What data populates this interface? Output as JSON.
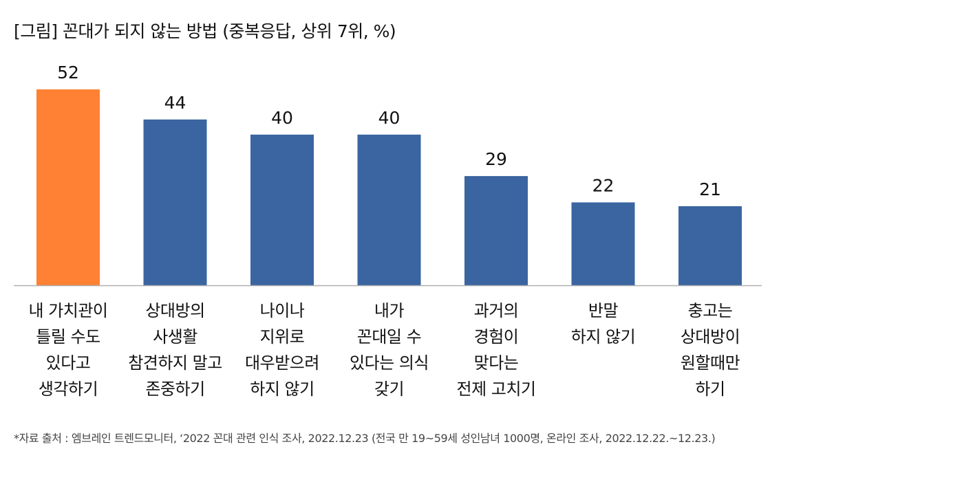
{
  "chart_data": {
    "type": "bar",
    "title": "[그림] 꼰대가 되지 않는 방법 (중복응답, 상위 7위, %)",
    "categories": [
      [
        "내 가치관이",
        "틀릴 수도",
        "있다고",
        "생각하기"
      ],
      [
        "상대방의",
        "사생활",
        "참견하지 말고",
        "존중하기"
      ],
      [
        "나이나",
        "지위로",
        "대우받으려",
        "하지 않기"
      ],
      [
        "내가",
        "꼰대일 수",
        "있다는 의식",
        "갖기"
      ],
      [
        "과거의",
        "경험이",
        "맞다는",
        "전제 고치기"
      ],
      [
        "반말",
        "하지 않기"
      ],
      [
        "충고는",
        "상대방이",
        "원할때만",
        "하기"
      ]
    ],
    "values": [
      52,
      44,
      40,
      40,
      29,
      22,
      21
    ],
    "highlight_index": 0,
    "colors": {
      "highlight": "#FF8133",
      "default": "#3A65A0",
      "axis": "#B0B0B0"
    },
    "ylim": [
      0,
      52
    ],
    "xlabel": "",
    "ylabel": "",
    "grid": false,
    "legend": "none",
    "footnote": "*자료 출처 : 엠브레인 트렌드모니터, ‘2022 꼰대 관련 인식 조사, 2022.12.23 (전국 만 19~59세 성인남녀 1000명, 온라인 조사, 2022.12.22.~12.23.)"
  }
}
